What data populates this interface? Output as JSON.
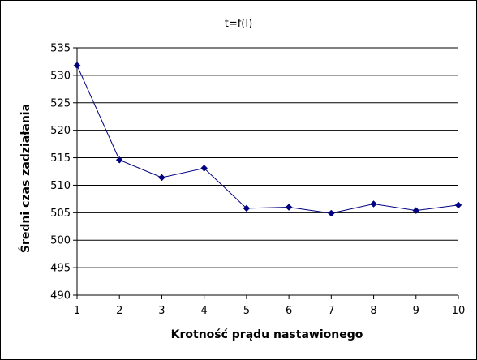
{
  "chart_data": {
    "type": "line",
    "title": "t=f(I)",
    "xlabel": "Krotność prądu nastawionego",
    "ylabel": "Średni czas zadziałania",
    "x": [
      1,
      2,
      3,
      4,
      5,
      6,
      7,
      8,
      9,
      10
    ],
    "series": [
      {
        "name": "",
        "values": [
          531.8,
          514.6,
          511.4,
          513.1,
          505.8,
          506.0,
          504.9,
          506.6,
          505.4,
          506.4
        ]
      }
    ],
    "xlim": [
      1,
      10
    ],
    "ylim": [
      490,
      535
    ],
    "yticks": [
      490,
      495,
      500,
      505,
      510,
      515,
      520,
      525,
      530,
      535
    ],
    "xticks": [
      1,
      2,
      3,
      4,
      5,
      6,
      7,
      8,
      9,
      10
    ],
    "grid": "horizontal",
    "legend": "none",
    "colors": {
      "series": "#000080",
      "grid": "#000000",
      "background": "#ffffff"
    }
  }
}
